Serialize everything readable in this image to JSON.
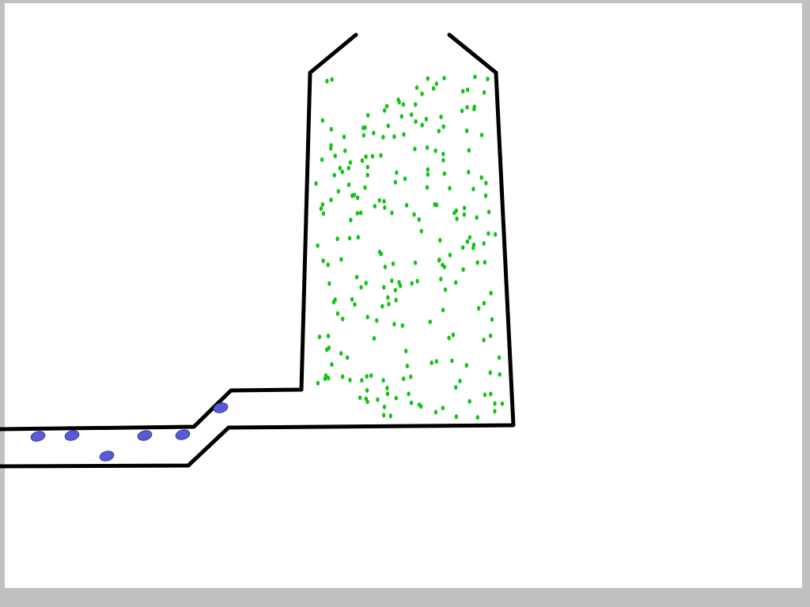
{
  "colors": {
    "background_border": "#c0c0c0",
    "canvas": "#ffffff",
    "walls": "#000000",
    "particles_tower": "#11c411",
    "particles_pipe": "#5a5ad6",
    "particles_pipe_edge": "#3a3aa8"
  },
  "scene": {
    "type": "particle-simulation",
    "description_visible": "",
    "tower_particle_count": 235,
    "pipe_particle_count": 7
  }
}
